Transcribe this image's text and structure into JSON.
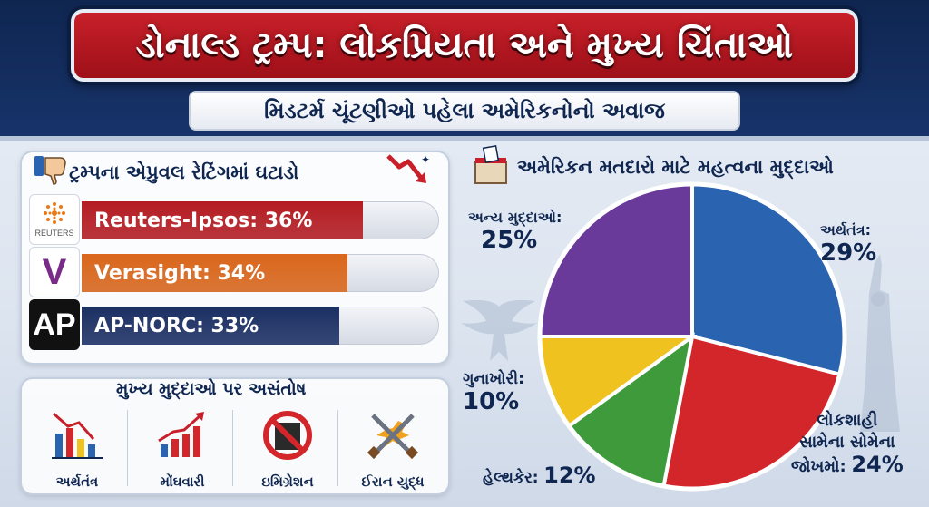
{
  "header": {
    "title": "ડોનાલ્ડ ટ્રમ્પ: લોકપ્રિયતા અને મુખ્ય ચિંતાઓ",
    "subtitle": "મિડટર્મ ચૂંટણીઓ પહેલા અમેરિકનોનો અવાજ"
  },
  "approval": {
    "heading": "ટ્રમ્પના એપ્રુવલ રેટિંગમાં ઘટાડો",
    "polls": [
      {
        "label": "Reuters-Ipsos: 36%",
        "value": 36,
        "logo_text": "REUTERS",
        "color": "#b41c22"
      },
      {
        "label": "Verasight: 34%",
        "value": 34,
        "logo_text": "V",
        "color": "#d9661b"
      },
      {
        "label": "AP-NORC: 33%",
        "value": 33,
        "logo_text": "AP",
        "color": "#1b2f63"
      }
    ]
  },
  "dissatisfaction": {
    "heading": "મુખ્ય મુદ્દાઓ પર અસંતોષ",
    "items": [
      {
        "label": "અર્થતંત્ર",
        "icon": "falling-bar-chart-icon"
      },
      {
        "label": "મોંઘવારી",
        "icon": "rising-bar-chart-icon"
      },
      {
        "label": "ઇમિગ્રેશન",
        "icon": "prohibited-sign-icon"
      },
      {
        "label": "ઈરાન યુદ્ધ",
        "icon": "crossed-swords-icon"
      }
    ]
  },
  "chart_data": {
    "type": "pie",
    "title": "અમેરિકન મતદારો માટે મહત્વના મુદ્દાઓ",
    "slices": [
      {
        "name": "અર્થતંત્ર:",
        "value_label": "29%",
        "value": 29,
        "color": "#2a64b0"
      },
      {
        "name": "લોકશાહી સામેના સોમેના જોખમો:",
        "value_label": "24%",
        "value": 24,
        "color": "#d3262b"
      },
      {
        "name": "હેલ્થકેર:",
        "value_label": "12%",
        "value": 12,
        "color": "#3f9a3c"
      },
      {
        "name": "ગુનાખોરી:",
        "value_label": "10%",
        "value": 10,
        "color": "#f0c21f"
      },
      {
        "name": "અન્ય મુદ્દાઓ:",
        "value_label": "25%",
        "value": 25,
        "color": "#6a3a9a"
      }
    ],
    "label_lines": {
      "democracy_line1": "લોકશાહી",
      "democracy_line2": "સામેના સોમેના",
      "democracy_line3": "જોખમો:"
    }
  },
  "colors": {
    "navy": "#0f2650",
    "banner_red": "#c8202a"
  }
}
